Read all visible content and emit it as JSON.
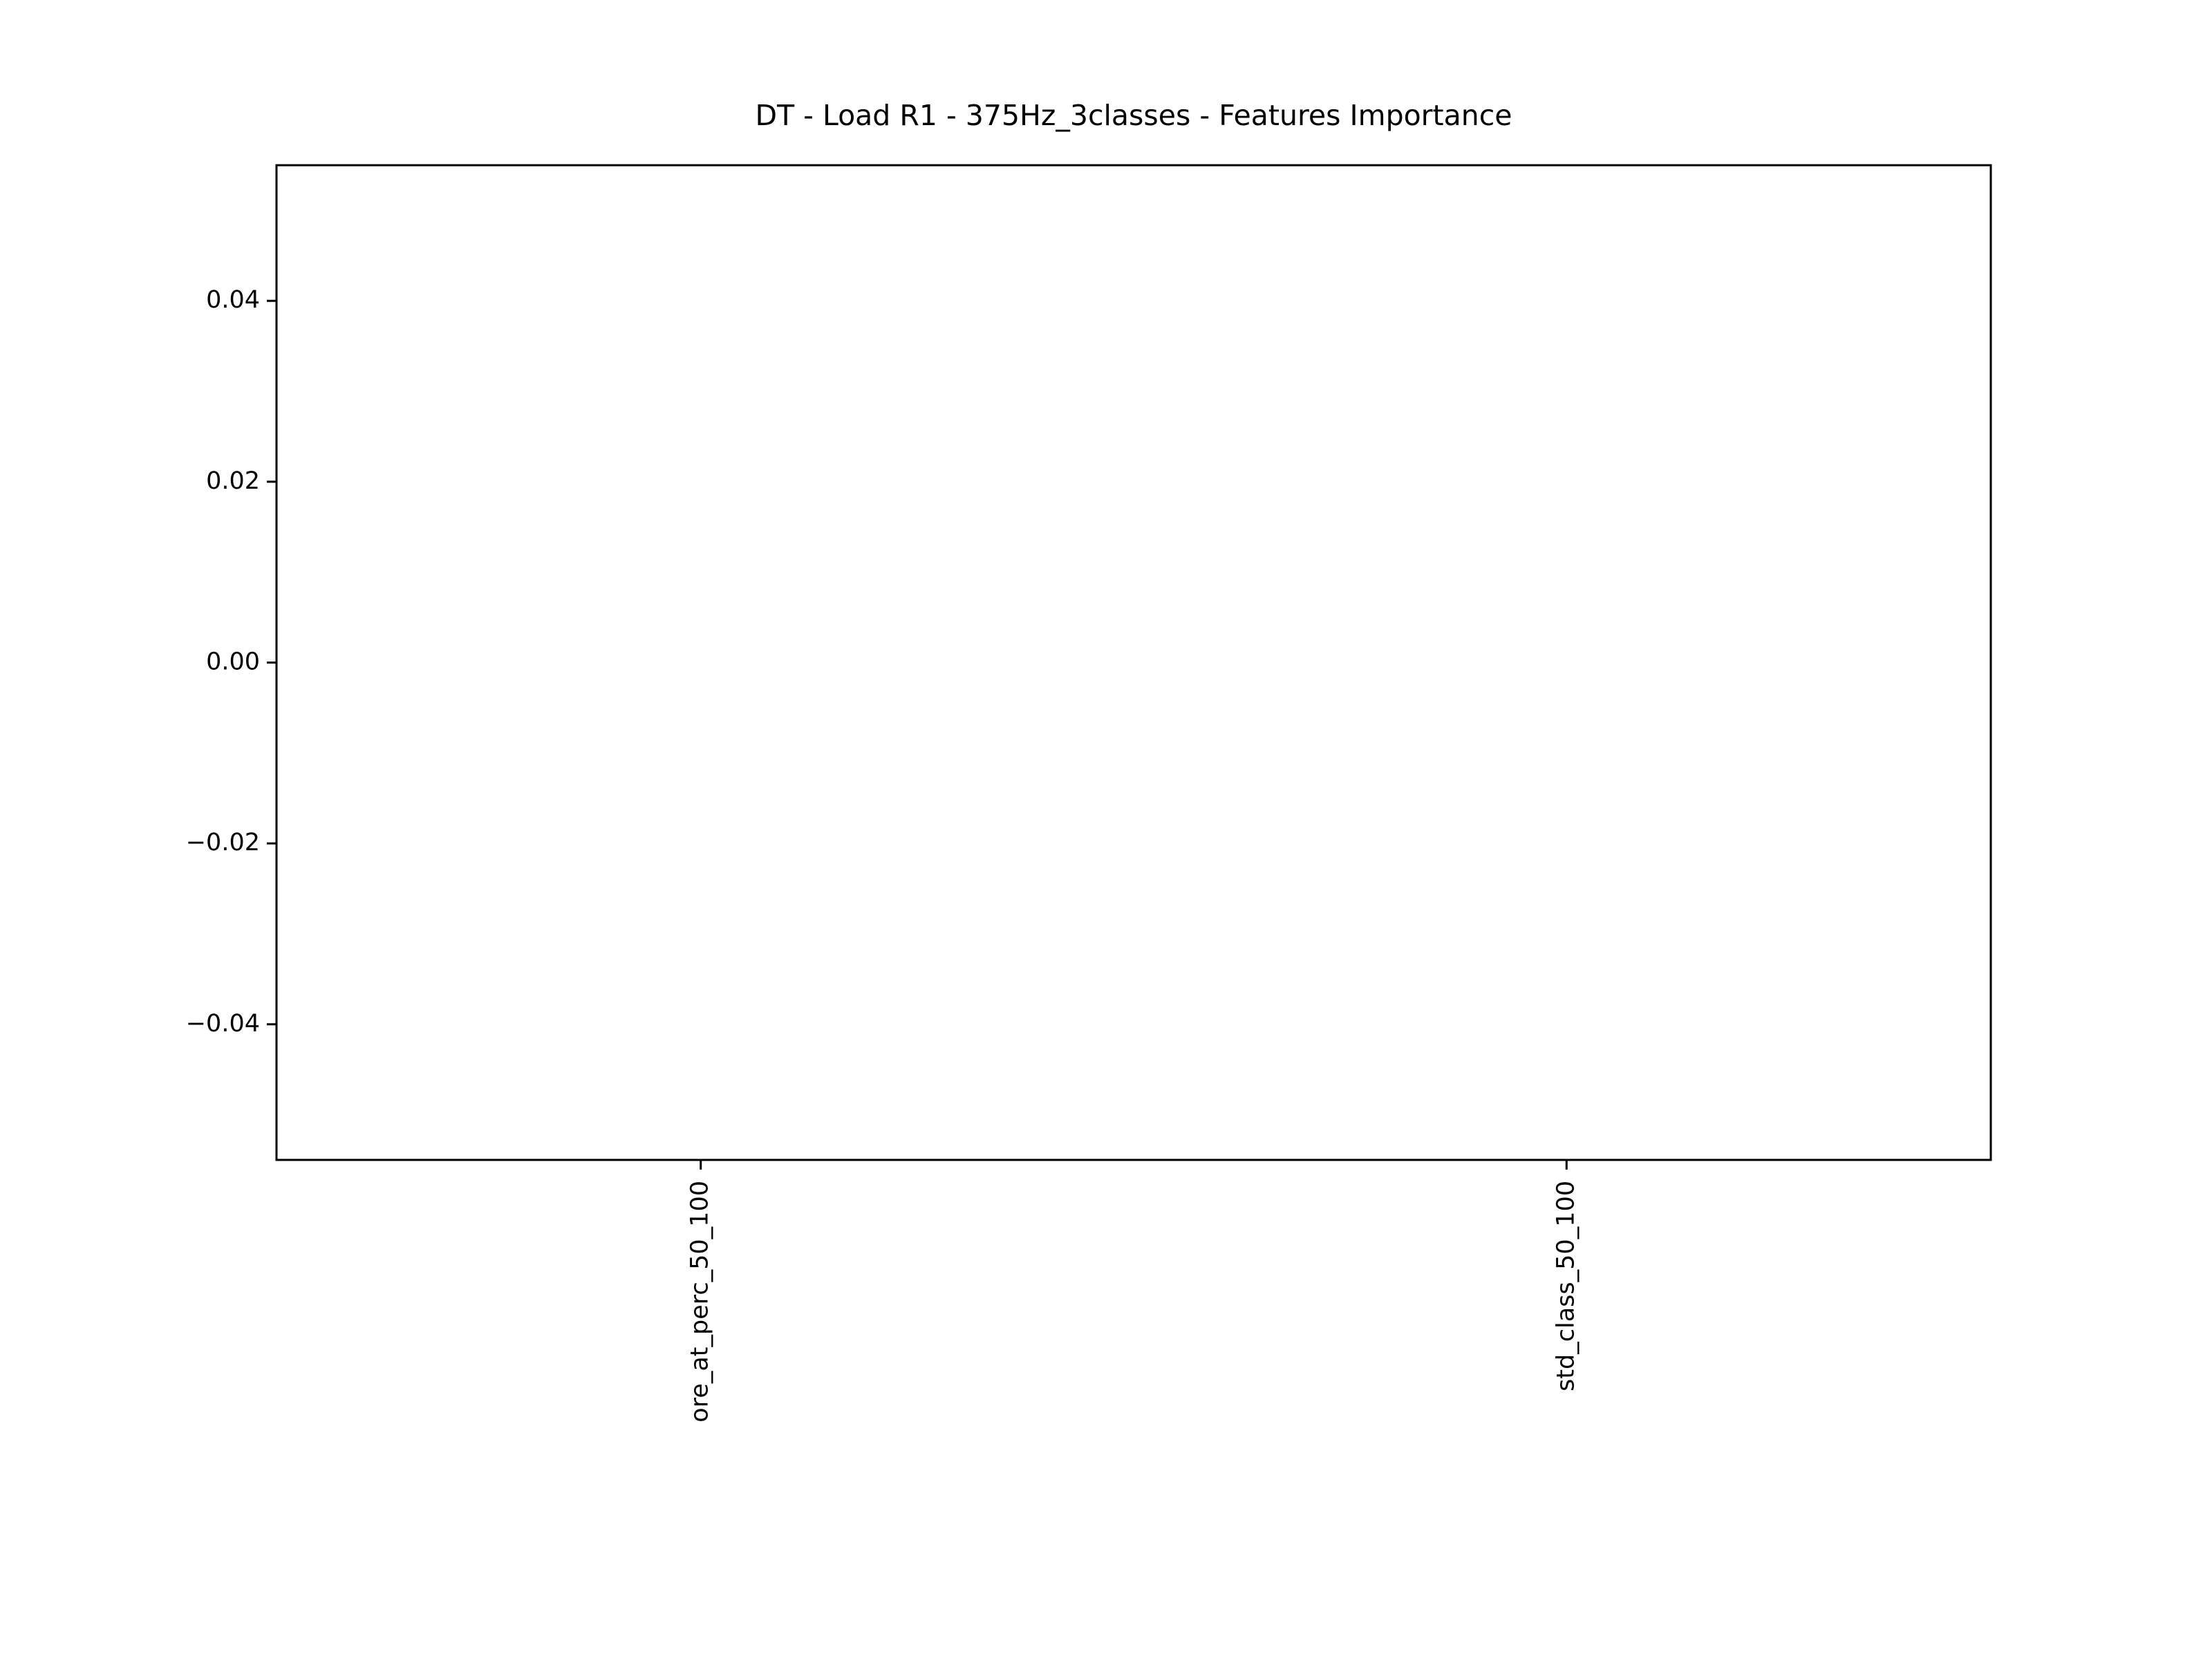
{
  "chart_data": {
    "type": "bar",
    "title": "DT - Load R1 - 375Hz_3classes - Features Importance",
    "categories": [
      "ore_at_perc_50_100",
      "std_class_50_100"
    ],
    "values": [
      0,
      0
    ],
    "color": "#1f77b4",
    "ylim": [
      -0.055,
      0.055
    ],
    "yticks": [
      {
        "value": -0.04,
        "label": "−0.04"
      },
      {
        "value": -0.02,
        "label": "−0.02"
      },
      {
        "value": 0,
        "label": "0.00"
      },
      0.02,
      0.04
    ]
  }
}
